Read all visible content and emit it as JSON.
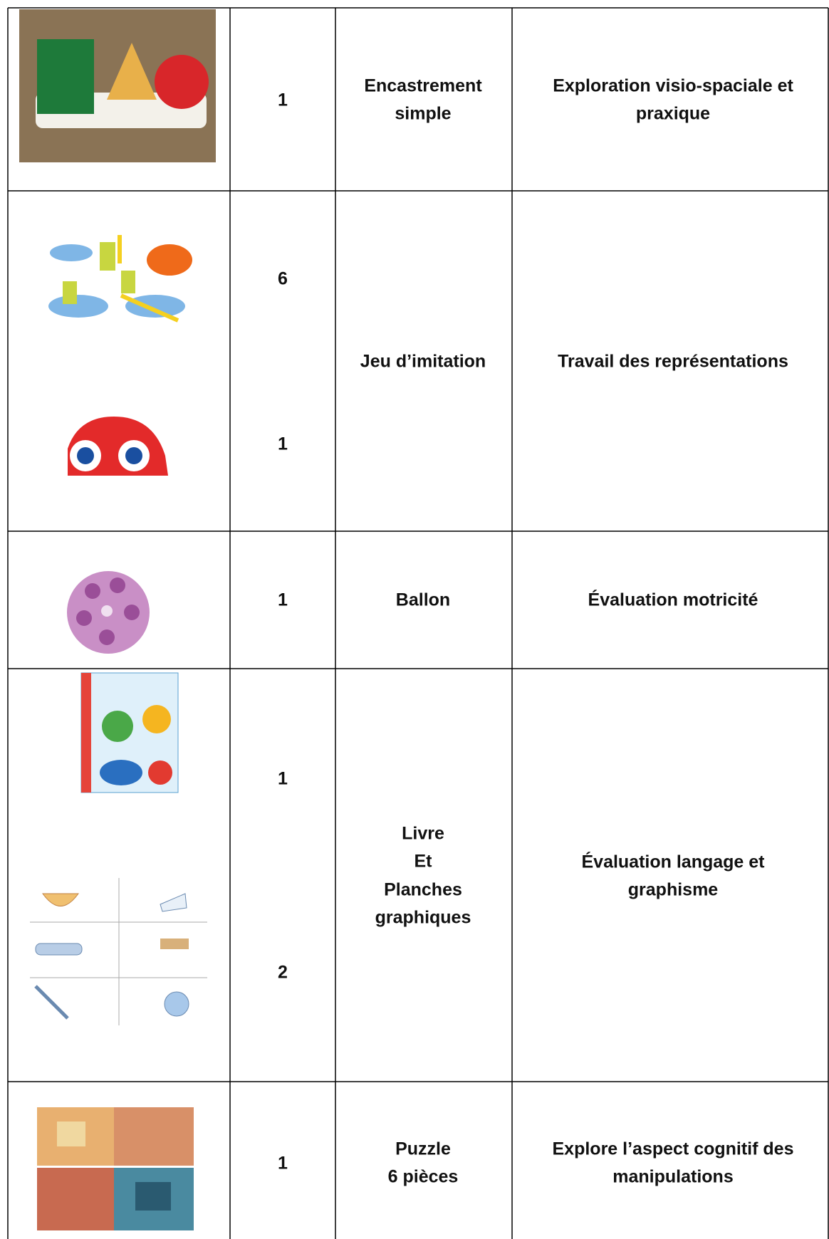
{
  "table": {
    "rows": [
      {
        "quantities": [
          1
        ],
        "item": [
          "Encastrement",
          "simple"
        ],
        "purpose": [
          "Exploration visio-spaciale et",
          "praxique"
        ]
      },
      {
        "quantities": [
          6,
          1
        ],
        "item": [
          "Jeu d’imitation"
        ],
        "purpose": [
          "Travail des représentations"
        ]
      },
      {
        "quantities": [
          1
        ],
        "item": [
          "Ballon"
        ],
        "purpose": [
          "Évaluation motricité"
        ]
      },
      {
        "quantities": [
          1,
          2
        ],
        "item": [
          "Livre",
          "Et",
          "Planches",
          "graphiques"
        ],
        "purpose": [
          "Évaluation langage et",
          "graphisme"
        ]
      },
      {
        "quantities": [
          1
        ],
        "item": [
          "Puzzle",
          "6 pièces"
        ],
        "purpose": [
          "Explore l’aspect cognitif des",
          "manipulations"
        ]
      }
    ]
  }
}
